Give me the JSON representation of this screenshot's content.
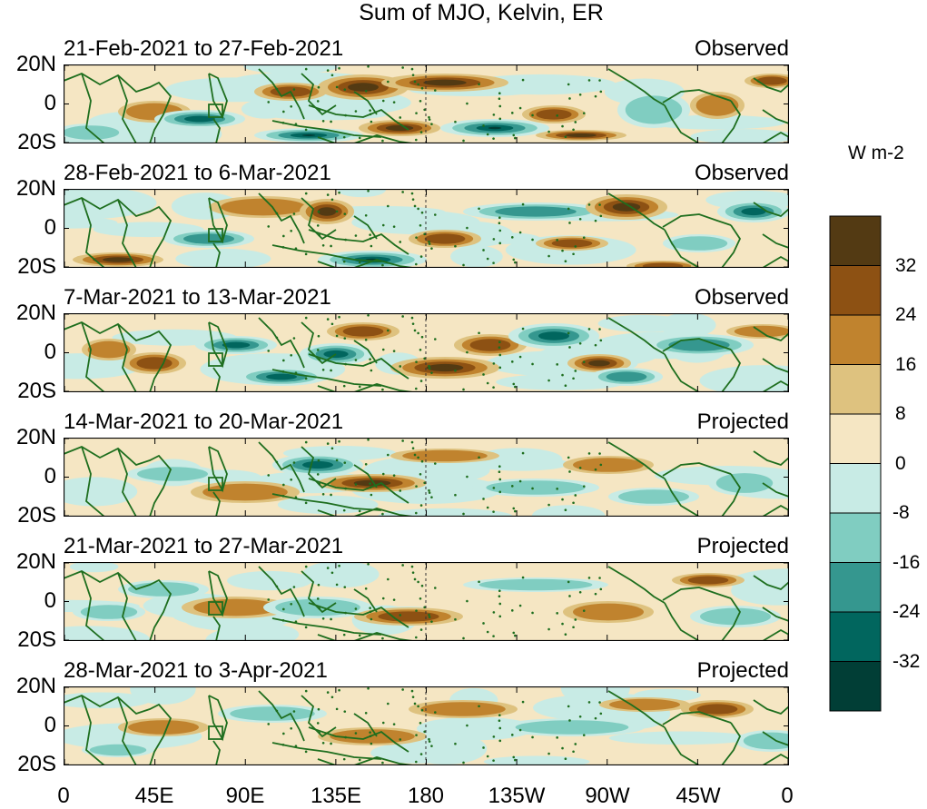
{
  "title": "Sum of MJO, Kelvin, ER",
  "panels": [
    {
      "period": "21-Feb-2021 to 27-Feb-2021",
      "status": "Observed"
    },
    {
      "period": "28-Feb-2021 to 6-Mar-2021",
      "status": "Observed"
    },
    {
      "period": "7-Mar-2021 to 13-Mar-2021",
      "status": "Observed"
    },
    {
      "period": "14-Mar-2021 to 20-Mar-2021",
      "status": "Projected"
    },
    {
      "period": "21-Mar-2021 to 27-Mar-2021",
      "status": "Projected"
    },
    {
      "period": "28-Mar-2021 to 3-Apr-2021",
      "status": "Projected"
    }
  ],
  "lat_labels": [
    "20N",
    "0",
    "20S"
  ],
  "lon_labels": [
    "0",
    "45E",
    "90E",
    "135E",
    "180",
    "135W",
    "90W",
    "45W",
    "0"
  ],
  "colorbar": {
    "unit": "W m-2",
    "labels": [
      "32",
      "24",
      "16",
      "8",
      "0",
      "-8",
      "-16",
      "-24",
      "-32"
    ],
    "colors": [
      "#533a13",
      "#8d5113",
      "#c0832e",
      "#dec27f",
      "#f5e6c3",
      "#c8ebe5",
      "#80cdc1",
      "#35978f",
      "#01665e",
      "#013e36"
    ]
  },
  "palette": {
    "coast": "#1e6e1e",
    "frame": "#000000"
  }
}
